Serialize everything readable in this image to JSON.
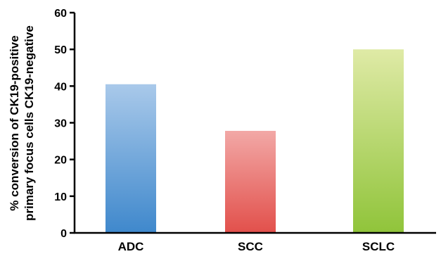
{
  "chart_data": {
    "type": "bar",
    "categories": [
      "ADC",
      "SCC",
      "SCLC"
    ],
    "values": [
      40.5,
      27.8,
      50
    ],
    "title": "",
    "xlabel": "",
    "ylabel": [
      "% conversion of CK19-positive",
      "primary focus cells CK19-negative"
    ],
    "ylim": [
      0,
      60
    ],
    "yticks": [
      0,
      10,
      20,
      30,
      40,
      50,
      60
    ],
    "grid": false,
    "legend": "none",
    "bar_colors": [
      {
        "top": "#a9c9ea",
        "bottom": "#3f88cc"
      },
      {
        "top": "#f2a8a6",
        "bottom": "#e2504b"
      },
      {
        "top": "#dfeaa6",
        "bottom": "#90c43a"
      }
    ],
    "axis_color": "#000000"
  }
}
